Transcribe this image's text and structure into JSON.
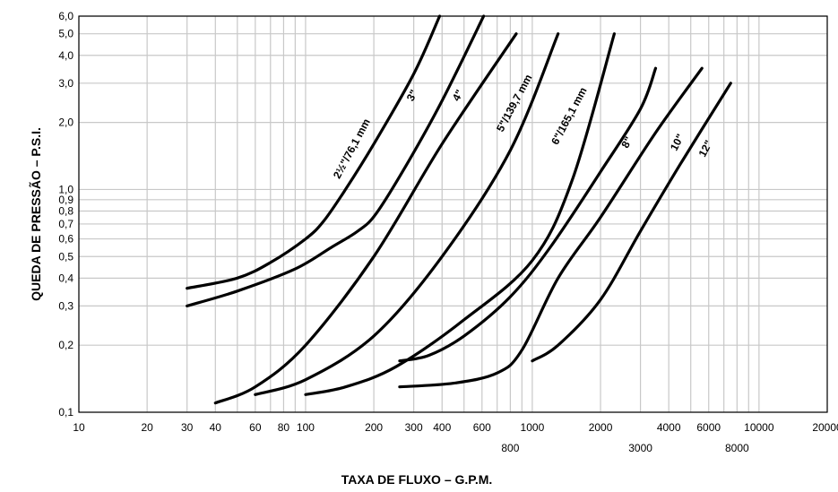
{
  "chart_data": {
    "type": "line",
    "title": "",
    "xlabel": "TAXA DE FLUXO – G.P.M.",
    "ylabel": "QUEDA DE PRESSÃO – P.S.I.",
    "x_scale": "log",
    "y_scale": "log",
    "xlim": [
      10,
      20000
    ],
    "ylim": [
      0.1,
      6.0
    ],
    "grid": true,
    "x_ticks": [
      {
        "value": 10,
        "label": "10",
        "row": 0
      },
      {
        "value": 20,
        "label": "20",
        "row": 0
      },
      {
        "value": 30,
        "label": "30",
        "row": 0
      },
      {
        "value": 40,
        "label": "40",
        "row": 0
      },
      {
        "value": 60,
        "label": "60",
        "row": 0
      },
      {
        "value": 80,
        "label": "80",
        "row": 0
      },
      {
        "value": 100,
        "label": "100",
        "row": 0
      },
      {
        "value": 200,
        "label": "200",
        "row": 0
      },
      {
        "value": 300,
        "label": "300",
        "row": 0
      },
      {
        "value": 400,
        "label": "400",
        "row": 0
      },
      {
        "value": 600,
        "label": "600",
        "row": 0
      },
      {
        "value": 800,
        "label": "800",
        "row": 1
      },
      {
        "value": 1000,
        "label": "1000",
        "row": 0
      },
      {
        "value": 2000,
        "label": "2000",
        "row": 0
      },
      {
        "value": 3000,
        "label": "3000",
        "row": 1
      },
      {
        "value": 4000,
        "label": "4000",
        "row": 0
      },
      {
        "value": 6000,
        "label": "6000",
        "row": 0
      },
      {
        "value": 8000,
        "label": "8000",
        "row": 1
      },
      {
        "value": 10000,
        "label": "10000",
        "row": 0
      },
      {
        "value": 20000,
        "label": "20000",
        "row": 0
      }
    ],
    "x_grid": [
      10,
      20,
      30,
      40,
      50,
      60,
      70,
      80,
      90,
      100,
      200,
      300,
      400,
      500,
      600,
      700,
      800,
      900,
      1000,
      2000,
      3000,
      4000,
      5000,
      6000,
      7000,
      8000,
      9000,
      10000,
      20000
    ],
    "y_ticks": [
      {
        "value": 0.1,
        "label": "0,1"
      },
      {
        "value": 0.2,
        "label": "0,2"
      },
      {
        "value": 0.3,
        "label": "0,3"
      },
      {
        "value": 0.4,
        "label": "0,4"
      },
      {
        "value": 0.5,
        "label": "0,5"
      },
      {
        "value": 0.6,
        "label": "0,6"
      },
      {
        "value": 0.7,
        "label": "0,7"
      },
      {
        "value": 0.8,
        "label": "0,8"
      },
      {
        "value": 0.9,
        "label": "0,9"
      },
      {
        "value": 1.0,
        "label": "1,0"
      },
      {
        "value": 2.0,
        "label": "2,0"
      },
      {
        "value": 3.0,
        "label": "3,0"
      },
      {
        "value": 4.0,
        "label": "4,0"
      },
      {
        "value": 5.0,
        "label": "5,0"
      },
      {
        "value": 6.0,
        "label": "6,0"
      }
    ],
    "series": [
      {
        "name": "2½\"/76,1 mm",
        "label_at": [
          165,
          1.5
        ],
        "label_angle": -62,
        "points": [
          [
            30,
            0.36
          ],
          [
            50,
            0.4
          ],
          [
            70,
            0.47
          ],
          [
            100,
            0.6
          ],
          [
            120,
            0.72
          ],
          [
            150,
            1.0
          ],
          [
            200,
            1.6
          ],
          [
            300,
            3.3
          ],
          [
            390,
            6.0
          ]
        ]
      },
      {
        "name": "3\"",
        "label_at": [
          305,
          2.6
        ],
        "label_angle": -62,
        "points": [
          [
            30,
            0.3
          ],
          [
            50,
            0.35
          ],
          [
            90,
            0.44
          ],
          [
            130,
            0.55
          ],
          [
            170,
            0.65
          ],
          [
            205,
            0.78
          ],
          [
            280,
            1.3
          ],
          [
            400,
            2.5
          ],
          [
            610,
            6.0
          ]
        ]
      },
      {
        "name": "4\"",
        "label_at": [
          485,
          2.6
        ],
        "label_angle": -62,
        "points": [
          [
            40,
            0.11
          ],
          [
            60,
            0.13
          ],
          [
            100,
            0.2
          ],
          [
            200,
            0.5
          ],
          [
            400,
            1.6
          ],
          [
            850,
            5.0
          ]
        ]
      },
      {
        "name": "5\"/139,7 mm",
        "label_at": [
          860,
          2.4
        ],
        "label_angle": -62,
        "points": [
          [
            60,
            0.12
          ],
          [
            100,
            0.14
          ],
          [
            200,
            0.22
          ],
          [
            400,
            0.5
          ],
          [
            800,
            1.5
          ],
          [
            1300,
            5.0
          ]
        ]
      },
      {
        "name": "6\"/165,1 mm",
        "label_at": [
          1500,
          2.1
        ],
        "label_angle": -62,
        "points": [
          [
            100,
            0.12
          ],
          [
            150,
            0.13
          ],
          [
            250,
            0.16
          ],
          [
            500,
            0.26
          ],
          [
            1000,
            0.48
          ],
          [
            1500,
            1.1
          ],
          [
            2300,
            5.0
          ]
        ]
      },
      {
        "name": "8\"",
        "label_at": [
          2700,
          1.6
        ],
        "label_angle": -62,
        "points": [
          [
            260,
            0.17
          ],
          [
            350,
            0.18
          ],
          [
            500,
            0.22
          ],
          [
            800,
            0.33
          ],
          [
            1200,
            0.55
          ],
          [
            2000,
            1.2
          ],
          [
            3000,
            2.3
          ],
          [
            3500,
            3.5
          ]
        ]
      },
      {
        "name": "10\"",
        "label_at": [
          4500,
          1.6
        ],
        "label_angle": -62,
        "points": [
          [
            260,
            0.13
          ],
          [
            450,
            0.135
          ],
          [
            700,
            0.15
          ],
          [
            900,
            0.19
          ],
          [
            1300,
            0.4
          ],
          [
            2000,
            0.75
          ],
          [
            3500,
            1.8
          ],
          [
            5600,
            3.5
          ]
        ]
      },
      {
        "name": "12\"",
        "label_at": [
          6000,
          1.5
        ],
        "label_angle": -62,
        "points": [
          [
            1000,
            0.17
          ],
          [
            1300,
            0.2
          ],
          [
            2000,
            0.32
          ],
          [
            3000,
            0.65
          ],
          [
            4500,
            1.3
          ],
          [
            7500,
            3.0
          ]
        ]
      }
    ]
  }
}
